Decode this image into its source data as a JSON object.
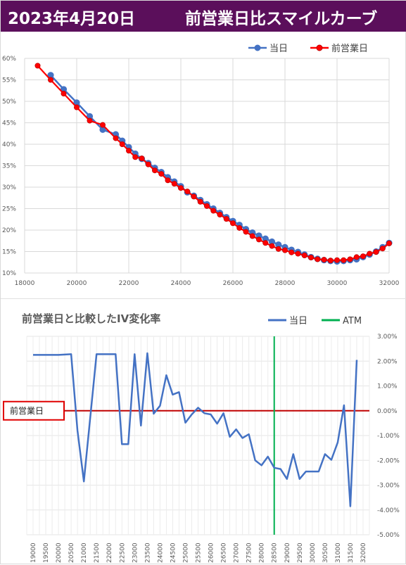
{
  "header": {
    "date": "2023年4月20日",
    "title": "前営業日比スマイルカーブ"
  },
  "colors": {
    "header_bg": "#5b0f5b",
    "today": "#4472c4",
    "prev": "#ff0000",
    "prev_stroke": "#c00000",
    "atm": "#00b050",
    "zero_line": "#c00000",
    "grid": "#d9d9d9"
  },
  "chart_data": [
    {
      "type": "line",
      "xlim": [
        18000,
        32000
      ],
      "ylim": [
        0.1,
        0.6
      ],
      "x_ticks": [
        18000,
        20000,
        22000,
        24000,
        26000,
        28000,
        30000,
        32000
      ],
      "y_tick_labels": [
        "60%",
        "55%",
        "50%",
        "45%",
        "40%",
        "35%",
        "30%",
        "25%",
        "20%",
        "15%",
        "10%"
      ],
      "y_ticks": [
        0.6,
        0.55,
        0.5,
        0.45,
        0.4,
        0.35,
        0.3,
        0.25,
        0.2,
        0.15,
        0.1
      ],
      "grid": true,
      "legend_position": "top-right",
      "series": [
        {
          "name": "当日",
          "color": "#4472c4",
          "points": [
            [
              19000,
              0.561
            ],
            [
              19500,
              0.528
            ],
            [
              20000,
              0.497
            ],
            [
              20500,
              0.465
            ],
            [
              21000,
              0.434
            ],
            [
              21500,
              0.423
            ],
            [
              21750,
              0.408
            ],
            [
              22000,
              0.393
            ],
            [
              22250,
              0.378
            ],
            [
              22500,
              0.366
            ],
            [
              22750,
              0.356
            ],
            [
              23000,
              0.345
            ],
            [
              23250,
              0.335
            ],
            [
              23500,
              0.323
            ],
            [
              23750,
              0.313
            ],
            [
              24000,
              0.302
            ],
            [
              24250,
              0.288
            ],
            [
              24500,
              0.28
            ],
            [
              24750,
              0.27
            ],
            [
              25000,
              0.26
            ],
            [
              25250,
              0.25
            ],
            [
              25500,
              0.24
            ],
            [
              25750,
              0.23
            ],
            [
              26000,
              0.221
            ],
            [
              26250,
              0.212
            ],
            [
              26500,
              0.202
            ],
            [
              26750,
              0.194
            ],
            [
              27000,
              0.187
            ],
            [
              27250,
              0.18
            ],
            [
              27500,
              0.173
            ],
            [
              27750,
              0.166
            ],
            [
              28000,
              0.16
            ],
            [
              28250,
              0.154
            ],
            [
              28500,
              0.149
            ],
            [
              28750,
              0.143
            ],
            [
              29000,
              0.137
            ],
            [
              29250,
              0.133
            ],
            [
              29500,
              0.13
            ],
            [
              29750,
              0.128
            ],
            [
              30000,
              0.127
            ],
            [
              30250,
              0.128
            ],
            [
              30500,
              0.13
            ],
            [
              30750,
              0.132
            ],
            [
              31000,
              0.137
            ],
            [
              31250,
              0.143
            ],
            [
              31500,
              0.15
            ],
            [
              31750,
              0.16
            ],
            [
              32000,
              0.17
            ]
          ]
        },
        {
          "name": "前営業日",
          "color": "#ff0000",
          "points": [
            [
              18500,
              0.583
            ],
            [
              19000,
              0.55
            ],
            [
              19500,
              0.518
            ],
            [
              20000,
              0.486
            ],
            [
              20500,
              0.455
            ],
            [
              21000,
              0.445
            ],
            [
              21500,
              0.414
            ],
            [
              21750,
              0.4
            ],
            [
              22000,
              0.385
            ],
            [
              22250,
              0.37
            ],
            [
              22500,
              0.367
            ],
            [
              22750,
              0.353
            ],
            [
              23000,
              0.339
            ],
            [
              23250,
              0.331
            ],
            [
              23500,
              0.316
            ],
            [
              23750,
              0.308
            ],
            [
              24000,
              0.298
            ],
            [
              24250,
              0.29
            ],
            [
              24500,
              0.278
            ],
            [
              24750,
              0.266
            ],
            [
              25000,
              0.256
            ],
            [
              25250,
              0.245
            ],
            [
              25500,
              0.236
            ],
            [
              25750,
              0.226
            ],
            [
              26000,
              0.216
            ],
            [
              26250,
              0.205
            ],
            [
              26500,
              0.196
            ],
            [
              26750,
              0.186
            ],
            [
              27000,
              0.178
            ],
            [
              27250,
              0.17
            ],
            [
              27500,
              0.163
            ],
            [
              27750,
              0.156
            ],
            [
              28000,
              0.153
            ],
            [
              28250,
              0.148
            ],
            [
              28500,
              0.145
            ],
            [
              28750,
              0.141
            ],
            [
              29000,
              0.136
            ],
            [
              29250,
              0.132
            ],
            [
              29500,
              0.131
            ],
            [
              29750,
              0.129
            ],
            [
              30000,
              0.13
            ],
            [
              30250,
              0.13
            ],
            [
              30500,
              0.132
            ],
            [
              30750,
              0.137
            ],
            [
              31000,
              0.139
            ],
            [
              31250,
              0.145
            ],
            [
              31500,
              0.149
            ],
            [
              31750,
              0.157
            ],
            [
              32000,
              0.169
            ]
          ]
        }
      ]
    },
    {
      "type": "line",
      "title": "前営業日と比較したIV変化率",
      "ylim": [
        -0.05,
        0.03
      ],
      "y_tick_labels": [
        "3.00%",
        "2.00%",
        "1.00%",
        "0.00%",
        "-1.00%",
        "-2.00%",
        "-3.00%",
        "-4.00%",
        "-5.00%"
      ],
      "y_ticks": [
        0.03,
        0.02,
        0.01,
        0.0,
        -0.01,
        -0.02,
        -0.03,
        -0.04,
        -0.05
      ],
      "x_labels": [
        "19000",
        "19500",
        "20000",
        "20500",
        "21000",
        "21500",
        "22000",
        "22500",
        "23000",
        "23500",
        "24000",
        "24500",
        "25000",
        "25500",
        "26000",
        "26500",
        "27000",
        "27500",
        "28000",
        "28500",
        "29000",
        "29500",
        "30000",
        "30500",
        "31000",
        "31500",
        "32000"
      ],
      "grid": true,
      "legend_position": "top-right",
      "atm": 28500,
      "atm_name": "ATM",
      "zero_label": "前営業日",
      "series": [
        {
          "name": "当日",
          "color": "#4472c4",
          "points": [
            [
              19000,
              0.0225
            ],
            [
              19500,
              0.0225
            ],
            [
              20000,
              0.0225
            ],
            [
              20500,
              0.0228
            ],
            [
              20750,
              -0.008
            ],
            [
              21000,
              -0.0285
            ],
            [
              21500,
              0.0228
            ],
            [
              22000,
              0.0228
            ],
            [
              22250,
              0.0228
            ],
            [
              22500,
              -0.0135
            ],
            [
              22750,
              -0.0135
            ],
            [
              23000,
              0.0228
            ],
            [
              23250,
              -0.006
            ],
            [
              23500,
              0.0232
            ],
            [
              23750,
              -0.0012
            ],
            [
              24000,
              0.002
            ],
            [
              24250,
              0.0143
            ],
            [
              24500,
              0.0065
            ],
            [
              24750,
              0.0075
            ],
            [
              25000,
              -0.0048
            ],
            [
              25250,
              -0.0015
            ],
            [
              25500,
              0.0012
            ],
            [
              25750,
              -0.001
            ],
            [
              26000,
              -0.0015
            ],
            [
              26250,
              -0.0052
            ],
            [
              26500,
              -0.001
            ],
            [
              26750,
              -0.0105
            ],
            [
              27000,
              -0.0075
            ],
            [
              27250,
              -0.011
            ],
            [
              27500,
              -0.0095
            ],
            [
              27750,
              -0.02
            ],
            [
              28000,
              -0.022
            ],
            [
              28250,
              -0.0185
            ],
            [
              28500,
              -0.023
            ],
            [
              28750,
              -0.0235
            ],
            [
              29000,
              -0.0275
            ],
            [
              29250,
              -0.0175
            ],
            [
              29500,
              -0.0275
            ],
            [
              29750,
              -0.0245
            ],
            [
              30000,
              -0.0245
            ],
            [
              30250,
              -0.0245
            ],
            [
              30500,
              -0.0175
            ],
            [
              30750,
              -0.0198
            ],
            [
              31000,
              -0.0128
            ],
            [
              31250,
              0.0022
            ],
            [
              31500,
              -0.0385
            ],
            [
              31750,
              0.0205
            ]
          ]
        }
      ]
    }
  ]
}
